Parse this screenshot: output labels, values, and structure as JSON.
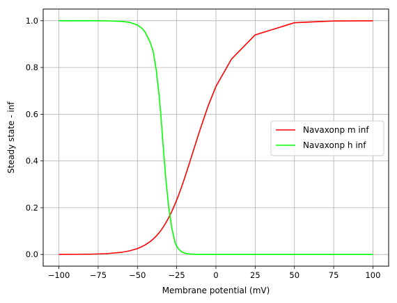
{
  "chart_data": {
    "type": "line",
    "xlabel": "Membrane potential (mV)",
    "ylabel": "Steady state - inf",
    "xlim": [
      -110,
      110
    ],
    "ylim": [
      -0.05,
      1.05
    ],
    "xticks": [
      -100,
      -75,
      -50,
      -25,
      0,
      25,
      50,
      75,
      100
    ],
    "xtick_labels": [
      "−100",
      "−75",
      "−50",
      "−25",
      "0",
      "25",
      "50",
      "75",
      "100"
    ],
    "yticks": [
      0.0,
      0.2,
      0.4,
      0.6,
      0.8,
      1.0
    ],
    "ytick_labels": [
      "0.0",
      "0.2",
      "0.4",
      "0.6",
      "0.8",
      "1.0"
    ],
    "grid": true,
    "legend_position": "center-right",
    "x": [
      -100,
      -90,
      -80,
      -70,
      -60,
      -55,
      -50,
      -47,
      -45,
      -42,
      -40,
      -38,
      -36,
      -35,
      -34,
      -32,
      -30,
      -28,
      -26,
      -25,
      -24,
      -22,
      -20,
      -18,
      -15,
      -12,
      -10,
      -5,
      0,
      10,
      25,
      50,
      75,
      100
    ],
    "series": [
      {
        "name": "Navaxonp m inf",
        "color": "#ff0000",
        "values": [
          0.0002,
          0.0005,
          0.0013,
          0.0035,
          0.0094,
          0.0154,
          0.0252,
          0.0342,
          0.0412,
          0.0545,
          0.0655,
          0.0788,
          0.0944,
          0.1032,
          0.1127,
          0.1339,
          0.1581,
          0.1855,
          0.2163,
          0.2327,
          0.2498,
          0.2864,
          0.3256,
          0.3668,
          0.4305,
          0.4943,
          0.5358,
          0.6347,
          0.7187,
          0.8366,
          0.9393,
          0.9915,
          0.9988,
          0.9998
        ]
      },
      {
        "name": "Navaxonp h inf",
        "color": "#00ff00",
        "values": [
          1.0,
          1.0,
          1.0,
          0.9995,
          0.997,
          0.993,
          0.982,
          0.967,
          0.95,
          0.91,
          0.87,
          0.79,
          0.67,
          0.59,
          0.5,
          0.33,
          0.2,
          0.11,
          0.05,
          0.037,
          0.025,
          0.012,
          0.006,
          0.003,
          0.001,
          0.0003,
          0.0001,
          0.0,
          0.0,
          0.0,
          0.0,
          0.0,
          0.0,
          0.0
        ]
      }
    ]
  }
}
